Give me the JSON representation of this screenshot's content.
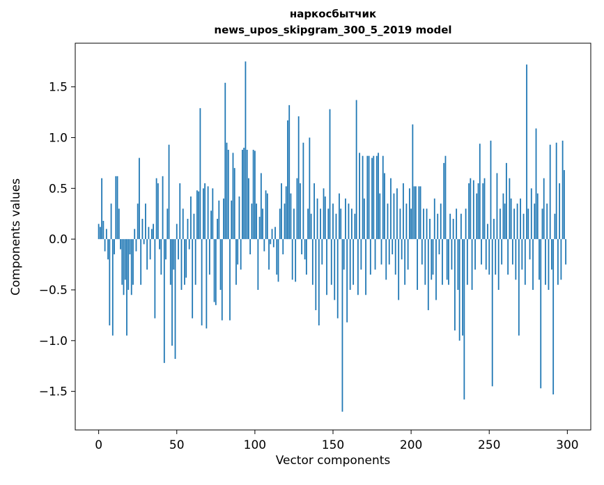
{
  "figure": {
    "title_line1": "наркосбытчик",
    "title_line2": "news_upos_skipgram_300_5_2019 model",
    "xlabel": "Vector components",
    "ylabel": "Components values"
  },
  "chart_data": {
    "type": "bar",
    "title": "наркосбытчик\nnews_upos_skipgram_300_5_2019 model",
    "xlabel": "Vector components",
    "ylabel": "Components values",
    "bar_color": "#1f77b4",
    "background": "#ffffff",
    "grid": false,
    "legend": null,
    "xlim": [
      -15,
      315
    ],
    "ylim": [
      -1.88,
      1.93
    ],
    "xticks": [
      0,
      50,
      100,
      150,
      200,
      250,
      300
    ],
    "yticks": [
      -1.5,
      -1.0,
      -0.5,
      0.0,
      0.5,
      1.0,
      1.5
    ],
    "x_is_index": true,
    "n_components": 300,
    "values": [
      0.15,
      0.12,
      0.6,
      0.18,
      -0.12,
      0.1,
      -0.2,
      -0.85,
      0.35,
      -0.95,
      -0.15,
      0.62,
      0.62,
      0.3,
      -0.1,
      -0.45,
      -0.55,
      -0.4,
      -0.95,
      -0.5,
      -0.15,
      -0.55,
      -0.45,
      0.1,
      -0.12,
      0.35,
      0.8,
      -0.45,
      0.2,
      -0.05,
      0.35,
      -0.3,
      0.12,
      -0.2,
      0.1,
      0.15,
      -0.78,
      0.6,
      0.55,
      -0.1,
      -0.35,
      0.62,
      -1.22,
      -0.2,
      0.3,
      0.93,
      -0.45,
      -1.05,
      -0.3,
      -1.18,
      0.15,
      -0.2,
      0.55,
      -0.5,
      0.3,
      -0.45,
      -0.38,
      0.2,
      -0.1,
      0.42,
      -0.78,
      0.25,
      -0.45,
      0.48,
      0.47,
      1.29,
      -0.85,
      0.5,
      0.55,
      -0.88,
      0.52,
      -0.35,
      0.28,
      0.5,
      -0.62,
      -0.65,
      0.2,
      0.38,
      -0.5,
      -0.8,
      0.4,
      1.54,
      0.95,
      0.88,
      -0.8,
      0.38,
      0.85,
      0.7,
      -0.45,
      -0.25,
      0.42,
      -0.3,
      0.88,
      0.9,
      1.75,
      0.88,
      0.6,
      -0.15,
      0.35,
      0.88,
      0.87,
      0.35,
      -0.5,
      0.22,
      0.65,
      0.3,
      -0.12,
      0.48,
      0.45,
      -0.3,
      -0.05,
      0.1,
      -0.08,
      0.12,
      -0.35,
      -0.42,
      0.3,
      0.55,
      -0.15,
      0.35,
      0.52,
      1.17,
      1.32,
      0.45,
      -0.4,
      0.3,
      -0.42,
      0.6,
      1.21,
      0.55,
      -0.15,
      0.95,
      -0.2,
      -0.35,
      0.3,
      1.0,
      0.25,
      -0.45,
      0.55,
      -0.7,
      0.4,
      -0.85,
      0.3,
      -0.25,
      0.5,
      0.42,
      -0.55,
      0.3,
      1.28,
      -0.45,
      0.35,
      -0.6,
      0.25,
      -0.78,
      0.45,
      0.3,
      -1.7,
      -0.3,
      0.4,
      -0.82,
      0.35,
      -0.5,
      0.3,
      -0.45,
      0.25,
      1.37,
      -0.55,
      0.85,
      -0.3,
      0.82,
      0.4,
      -0.55,
      0.82,
      0.82,
      -0.35,
      0.8,
      0.82,
      -0.3,
      0.82,
      0.85,
      0.45,
      -0.25,
      0.82,
      0.65,
      -0.4,
      0.35,
      -0.25,
      0.6,
      -0.15,
      0.45,
      -0.35,
      0.5,
      -0.6,
      0.3,
      -0.2,
      0.55,
      -0.45,
      0.35,
      -0.3,
      0.5,
      0.3,
      1.13,
      0.52,
      0.52,
      -0.5,
      0.52,
      0.52,
      -0.25,
      0.3,
      -0.45,
      0.3,
      -0.7,
      0.2,
      -0.4,
      -0.35,
      0.4,
      -0.6,
      0.25,
      -0.15,
      0.35,
      -0.45,
      0.75,
      0.82,
      -0.4,
      -0.45,
      0.25,
      -0.3,
      0.2,
      -0.9,
      0.3,
      -0.5,
      -1.0,
      0.25,
      -0.95,
      -1.58,
      0.3,
      -0.45,
      0.55,
      0.6,
      -0.5,
      0.58,
      -0.3,
      0.45,
      0.55,
      0.94,
      -0.25,
      0.55,
      0.6,
      -0.3,
      0.15,
      -0.35,
      0.97,
      -1.45,
      0.2,
      -0.35,
      0.65,
      -0.5,
      0.3,
      -0.25,
      0.45,
      0.35,
      0.75,
      -0.35,
      0.6,
      0.4,
      -0.25,
      0.3,
      -0.4,
      0.35,
      -0.95,
      0.4,
      -0.3,
      0.25,
      -0.45,
      1.72,
      0.3,
      -0.2,
      0.5,
      -0.5,
      0.35,
      1.09,
      0.45,
      -0.4,
      -1.47,
      0.3,
      0.6,
      -0.45,
      0.35,
      -0.5,
      0.93,
      -0.3,
      -1.53,
      0.25,
      0.95,
      -0.45,
      0.55,
      -0.4,
      0.97,
      0.68,
      -0.25
    ]
  }
}
